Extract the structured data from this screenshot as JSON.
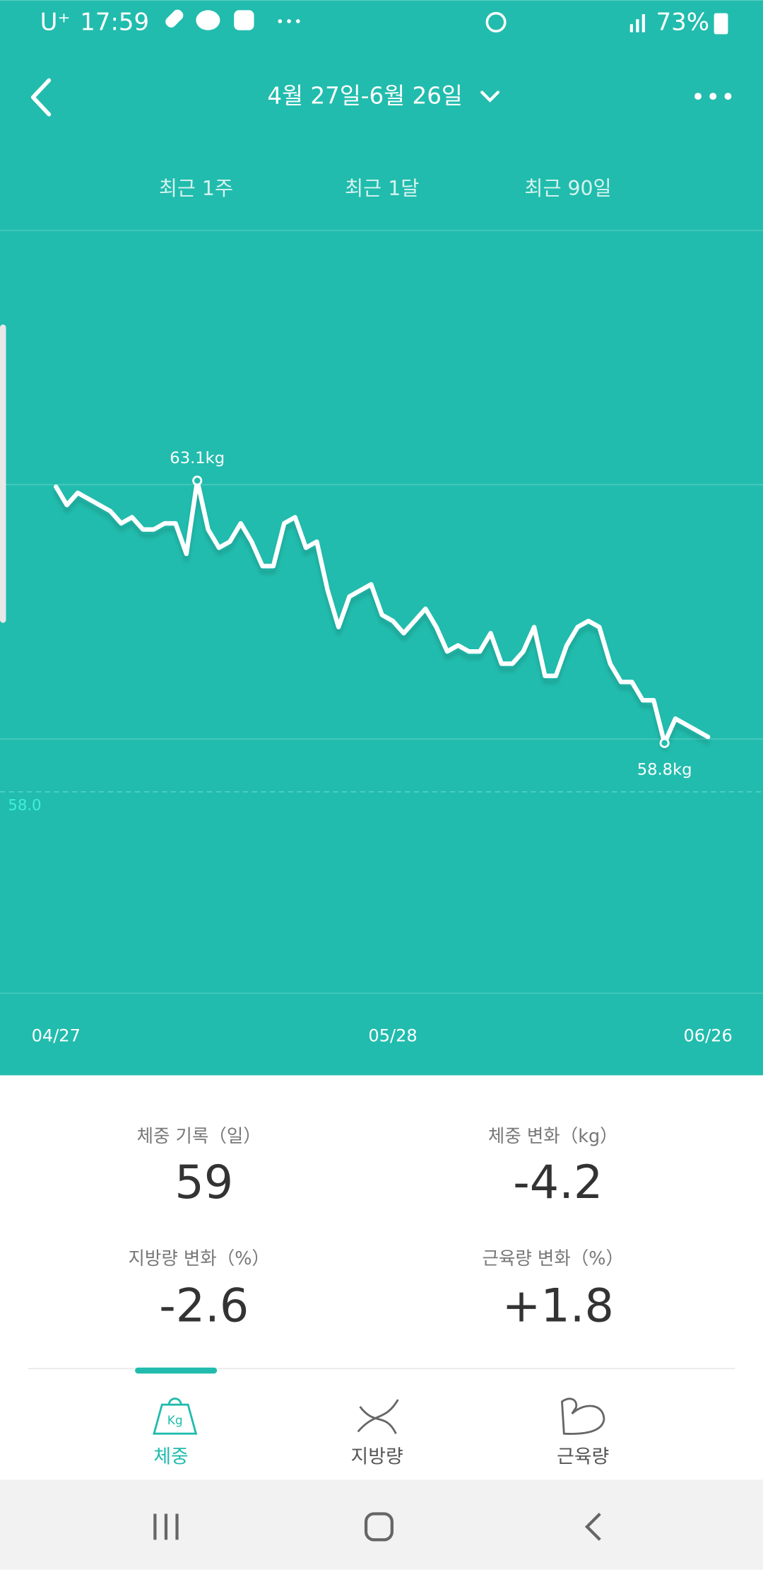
{
  "status_bar": {
    "carrier": "U⁺",
    "time": "17:59",
    "battery": "73%"
  },
  "header": {
    "title": "4월 27일-6월 26일"
  },
  "tabs": [
    "최근 1주",
    "최근 1달",
    "최근 90일"
  ],
  "chart_data": {
    "type": "line",
    "categories": [
      "04/27",
      null,
      null,
      null,
      null,
      null,
      null,
      null,
      null,
      null,
      null,
      null,
      null,
      null,
      null,
      null,
      null,
      null,
      null,
      null,
      null,
      null,
      null,
      null,
      null,
      null,
      null,
      null,
      null,
      null,
      null,
      "05/28",
      null,
      null,
      null,
      null,
      null,
      null,
      null,
      null,
      null,
      null,
      null,
      null,
      null,
      null,
      null,
      null,
      null,
      null,
      null,
      null,
      null,
      null,
      null,
      null,
      null,
      null,
      null,
      null,
      "06/26"
    ],
    "values": [
      63.0,
      62.7,
      62.9,
      62.8,
      62.7,
      62.6,
      62.4,
      62.5,
      62.3,
      62.3,
      62.4,
      62.4,
      61.9,
      63.1,
      62.3,
      62.0,
      62.1,
      62.4,
      62.1,
      61.7,
      61.7,
      62.4,
      62.5,
      62.0,
      62.1,
      61.3,
      60.7,
      61.2,
      61.3,
      61.4,
      60.9,
      60.8,
      60.6,
      60.8,
      61.0,
      60.7,
      60.3,
      60.4,
      60.3,
      60.3,
      60.6,
      60.1,
      60.1,
      60.3,
      60.7,
      59.9,
      59.9,
      60.4,
      60.7,
      60.8,
      60.7,
      60.1,
      59.8,
      59.8,
      59.5,
      59.5,
      58.8,
      59.2,
      59.1,
      59.0,
      58.9
    ],
    "value_labels": [
      null,
      null,
      null,
      null,
      null,
      null,
      null,
      null,
      null,
      null,
      null,
      null,
      null,
      "63.1kg",
      null,
      null,
      null,
      null,
      null,
      null,
      null,
      null,
      null,
      null,
      null,
      null,
      null,
      null,
      null,
      null,
      null,
      null,
      null,
      null,
      null,
      null,
      null,
      null,
      null,
      null,
      null,
      null,
      null,
      null,
      null,
      null,
      null,
      null,
      null,
      null,
      null,
      null,
      null,
      null,
      null,
      null,
      "58.8kg",
      null,
      null,
      null,
      null
    ],
    "color": "#ffffff",
    "ylim": [
      54.7,
      67.2
    ],
    "reference_line": {
      "value": 58.0,
      "label": "58.0"
    }
  },
  "stats": [
    {
      "label": "체중 기록（일）",
      "value": "59"
    },
    {
      "label": "체중 변화（kg）",
      "value": "-4.2"
    },
    {
      "label": "지방량 변화（%）",
      "value": "-2.6"
    },
    {
      "label": "근육량 변화（%）",
      "value": "+1.8"
    }
  ],
  "bottom_tabs": {
    "icon_text": "Kg",
    "items": [
      "체중",
      "지방량",
      "근육량"
    ]
  }
}
